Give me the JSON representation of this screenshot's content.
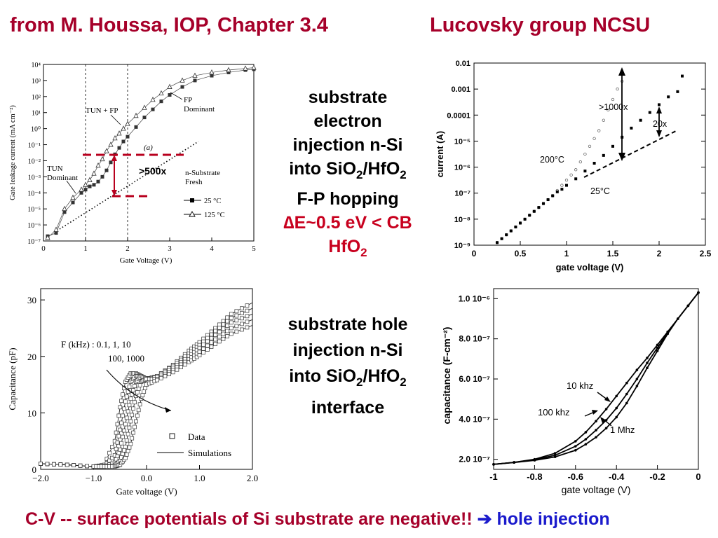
{
  "header": {
    "left": "from M. Houssa, IOP, Chapter 3.4",
    "right": "Lucovsky group NCSU"
  },
  "electron_text": {
    "line1": "substrate",
    "line2": "electron",
    "line3": "injection n-Si",
    "line4a": "into SiO",
    "line4sub1": "2",
    "line4b": "/HfO",
    "line4sub2": "2",
    "line5": "F-P hopping",
    "line6a": "∆",
    "line6b": "E~0.5 eV < CB",
    "line7a": "HfO",
    "line7sub": "2"
  },
  "hole_text": {
    "line1": "substrate hole",
    "line2": "injection n-Si",
    "line3a": "into SiO",
    "line3sub1": "2",
    "line3b": "/HfO",
    "line3sub2": "2",
    "line4": "interface"
  },
  "footer": {
    "text": "C-V -- surface potentials of Si substrate are negative!!",
    "arrow": "➔",
    "emphasis": "hole injection"
  },
  "chart_data": [
    {
      "type": "scatter",
      "title": "",
      "xlabel": "Gate Voltage (V)",
      "ylabel": "Gate leakage current (mA cm⁻²)",
      "xlim": [
        0,
        5
      ],
      "ylim_exp": [
        -7,
        4
      ],
      "y_scale": "log",
      "x_ticks": [
        "0",
        "1",
        "2",
        "3",
        "4",
        "5"
      ],
      "y_ticks": [
        "10⁻⁷",
        "10⁻⁶",
        "10⁻⁵",
        "10⁻⁴",
        "10⁻³",
        "10⁻²",
        "10⁻¹",
        "10⁰",
        "10¹",
        "10²",
        "10³",
        "10⁴"
      ],
      "annotations": [
        "TUN + FP",
        "FP",
        "Dominant",
        "TUN",
        "Dominant",
        "(a)",
        "n-Substrate",
        "Fresh",
        ">500x"
      ],
      "legend": [
        {
          "name": "25 °C",
          "marker": "filled-square"
        },
        {
          "name": "125 °C",
          "marker": "open-triangle"
        }
      ],
      "series": [
        {
          "name": "25 °C",
          "x": [
            0.1,
            0.3,
            0.5,
            0.7,
            0.9,
            1.0,
            1.1,
            1.2,
            1.3,
            1.4,
            1.5,
            1.6,
            1.7,
            1.8,
            1.9,
            2.0,
            2.2,
            2.4,
            2.6,
            2.8,
            3.0,
            3.3,
            3.6,
            4.0,
            4.4,
            4.8,
            5.0
          ],
          "y_exp": [
            -6.7,
            -6.5,
            -5.2,
            -4.6,
            -4.0,
            -3.8,
            -3.6,
            -3.5,
            -3.3,
            -3.0,
            -2.6,
            -2.1,
            -1.6,
            -1.2,
            -0.8,
            -0.5,
            0.1,
            0.7,
            1.2,
            1.7,
            2.1,
            2.6,
            3.0,
            3.3,
            3.5,
            3.65,
            3.7
          ]
        },
        {
          "name": "125 °C",
          "x": [
            0.1,
            0.3,
            0.5,
            0.7,
            0.9,
            1.0,
            1.1,
            1.2,
            1.3,
            1.4,
            1.5,
            1.6,
            1.7,
            1.8,
            1.9,
            2.0,
            2.2,
            2.4,
            2.6,
            2.8,
            3.0,
            3.3,
            3.6,
            4.0,
            4.4,
            4.8,
            5.0
          ],
          "y_exp": [
            -6.8,
            -6.3,
            -5.0,
            -4.3,
            -3.8,
            -3.5,
            -3.2,
            -2.8,
            -2.3,
            -1.9,
            -1.4,
            -1.0,
            -0.6,
            -0.3,
            0.0,
            0.3,
            0.8,
            1.3,
            1.8,
            2.2,
            2.6,
            3.0,
            3.3,
            3.5,
            3.65,
            3.75,
            3.8
          ]
        }
      ]
    },
    {
      "type": "scatter",
      "title": "",
      "xlabel": "gate voltage (V)",
      "ylabel": "current (A)",
      "xlim": [
        0,
        2.5
      ],
      "ylim_exp": [
        -9,
        -2
      ],
      "y_scale": "log",
      "x_ticks": [
        "0",
        "0.5",
        "1",
        "1.5",
        "2",
        "2.5"
      ],
      "y_ticks": [
        "10⁻⁹",
        "10⁻⁸",
        "10⁻⁷",
        "10⁻⁶",
        "10⁻⁵",
        "0.0001",
        "0.001",
        "0.01"
      ],
      "annotations": [
        ">1000x",
        "20x",
        "200°C",
        "25°C"
      ],
      "series": [
        {
          "name": "200°C",
          "x": [
            0.25,
            0.3,
            0.35,
            0.4,
            0.45,
            0.5,
            0.55,
            0.6,
            0.65,
            0.7,
            0.75,
            0.8,
            0.85,
            0.9,
            0.95,
            1.0,
            1.05,
            1.1,
            1.15,
            1.2,
            1.25,
            1.3,
            1.35,
            1.4,
            1.45,
            1.5,
            1.55,
            1.6
          ],
          "y_exp": [
            -8.9,
            -8.75,
            -8.6,
            -8.45,
            -8.3,
            -8.15,
            -8.0,
            -7.85,
            -7.7,
            -7.55,
            -7.4,
            -7.25,
            -7.1,
            -6.9,
            -6.7,
            -6.5,
            -6.3,
            -6.1,
            -5.8,
            -5.5,
            -5.2,
            -4.9,
            -4.6,
            -4.2,
            -3.8,
            -3.4,
            -3.0,
            -2.7
          ]
        },
        {
          "name": "25°C",
          "x": [
            0.25,
            0.3,
            0.35,
            0.4,
            0.45,
            0.5,
            0.55,
            0.6,
            0.65,
            0.7,
            0.75,
            0.8,
            0.85,
            0.9,
            0.95,
            1.0,
            1.1,
            1.2,
            1.3,
            1.4,
            1.5,
            1.6,
            1.7,
            1.8,
            1.9,
            2.0,
            2.1,
            2.2,
            2.25
          ],
          "y_exp": [
            -8.9,
            -8.75,
            -8.6,
            -8.45,
            -8.3,
            -8.15,
            -8.0,
            -7.85,
            -7.7,
            -7.55,
            -7.4,
            -7.25,
            -7.1,
            -6.95,
            -6.85,
            -6.7,
            -6.45,
            -6.15,
            -5.85,
            -5.55,
            -5.2,
            -4.85,
            -4.5,
            -4.2,
            -3.9,
            -3.6,
            -3.3,
            -3.1,
            -2.5
          ]
        }
      ]
    },
    {
      "type": "line",
      "title": "",
      "xlabel": "Gate voltage (V)",
      "ylabel": "Capacitance (pF)",
      "xlim": [
        -2,
        2
      ],
      "ylim": [
        0,
        32
      ],
      "x_ticks": [
        "−2.0",
        "−1.0",
        "0.0",
        "1.0",
        "2.0"
      ],
      "y_ticks": [
        "0",
        "10",
        "20",
        "30"
      ],
      "annotations": [
        "F (kHz) : 0.1, 1, 10",
        "100, 1000"
      ],
      "legend": [
        {
          "name": "Data",
          "marker": "open-square"
        },
        {
          "name": "Simulations",
          "marker": "line"
        }
      ],
      "series": [
        {
          "name": "0.1 kHz",
          "x": [
            -2,
            -1.5,
            -1,
            -0.8,
            -0.6,
            -0.5,
            -0.4,
            -0.3,
            -0.2,
            -0.1,
            0,
            0.2,
            0.5,
            0.8,
            1.0,
            1.3,
            1.6,
            2.0
          ],
          "y": [
            1,
            0.8,
            0.5,
            0.8,
            5,
            11,
            15.5,
            17,
            17,
            16.5,
            16,
            16.5,
            18.5,
            21,
            22.5,
            25,
            27.5,
            29.5
          ]
        },
        {
          "name": "1 kHz",
          "x": [
            -2,
            -1.5,
            -1,
            -0.8,
            -0.6,
            -0.5,
            -0.4,
            -0.3,
            -0.2,
            -0.1,
            0,
            0.2,
            0.5,
            0.8,
            1.0,
            1.3,
            1.6,
            2.0
          ],
          "y": [
            1,
            0.8,
            0.5,
            0.6,
            2.5,
            7,
            12,
            15.5,
            16.5,
            16.5,
            16,
            16.5,
            18.3,
            20.5,
            22,
            24.5,
            26.8,
            28.5
          ]
        },
        {
          "name": "10 kHz",
          "x": [
            -2,
            -1.5,
            -1,
            -0.8,
            -0.6,
            -0.5,
            -0.4,
            -0.3,
            -0.2,
            -0.1,
            0,
            0.2,
            0.5,
            0.8,
            1.0,
            1.3,
            1.6,
            2.0
          ],
          "y": [
            1,
            0.8,
            0.5,
            0.5,
            1.2,
            3.5,
            8,
            12.5,
            15.5,
            16.5,
            16,
            16.3,
            18,
            20,
            21.5,
            23.8,
            26,
            27.5
          ]
        },
        {
          "name": "100 kHz",
          "x": [
            -2,
            -1.5,
            -1,
            -0.8,
            -0.6,
            -0.5,
            -0.4,
            -0.3,
            -0.2,
            -0.1,
            0,
            0.2,
            0.5,
            0.8,
            1.0,
            1.3,
            1.6,
            2.0
          ],
          "y": [
            1,
            0.8,
            0.5,
            0.5,
            0.7,
            1.5,
            4,
            8.5,
            13,
            15.5,
            16,
            16,
            17.6,
            19.5,
            20.8,
            23,
            25,
            26.5
          ]
        },
        {
          "name": "1000 kHz",
          "x": [
            -2,
            -1.5,
            -1,
            -0.8,
            -0.6,
            -0.5,
            -0.4,
            -0.3,
            -0.2,
            -0.1,
            0,
            0.2,
            0.5,
            0.8,
            1.0,
            1.3,
            1.6,
            2.0
          ],
          "y": [
            1,
            0.8,
            0.5,
            0.5,
            0.5,
            0.8,
            2,
            4.5,
            8.5,
            12.5,
            15,
            15.8,
            17.2,
            19,
            20.2,
            22.2,
            24,
            25.5
          ]
        }
      ]
    },
    {
      "type": "line",
      "title": "",
      "xlabel": "gate voltage (V)",
      "ylabel": "capacitance (F-cm⁻²)",
      "xlim": [
        -1,
        0
      ],
      "ylim": [
        1.5e-07,
        1.05e-06
      ],
      "x_ticks": [
        "-1",
        "-0.8",
        "-0.6",
        "-0.4",
        "-0.2",
        "0"
      ],
      "y_ticks": [
        "2.0 10⁻⁷",
        "4.0 10⁻⁷",
        "6.0 10⁻⁷",
        "8.0 10⁻⁷",
        "1.0 10⁻⁶"
      ],
      "annotations": [
        "10 khz",
        "100 khz",
        "1 Mhz"
      ],
      "series": [
        {
          "name": "10 khz",
          "x": [
            -1,
            -0.9,
            -0.8,
            -0.7,
            -0.6,
            -0.55,
            -0.5,
            -0.45,
            -0.4,
            -0.35,
            -0.3,
            -0.25,
            -0.2,
            -0.15,
            -0.1,
            -0.05,
            0
          ],
          "y": [
            1.75e-07,
            1.85e-07,
            2e-07,
            2.3e-07,
            2.9e-07,
            3.35e-07,
            3.9e-07,
            4.5e-07,
            5.15e-07,
            5.8e-07,
            6.45e-07,
            7.05e-07,
            7.7e-07,
            8.35e-07,
            9e-07,
            9.65e-07,
            1.03e-06
          ]
        },
        {
          "name": "100 khz",
          "x": [
            -1,
            -0.9,
            -0.8,
            -0.7,
            -0.6,
            -0.55,
            -0.5,
            -0.45,
            -0.4,
            -0.35,
            -0.3,
            -0.25,
            -0.2,
            -0.15,
            -0.1,
            -0.05,
            0
          ],
          "y": [
            1.75e-07,
            1.85e-07,
            1.98e-07,
            2.2e-07,
            2.65e-07,
            3e-07,
            3.45e-07,
            3.95e-07,
            4.55e-07,
            5.25e-07,
            6e-07,
            6.8e-07,
            7.55e-07,
            8.3e-07,
            9e-07,
            9.65e-07,
            1.03e-06
          ]
        },
        {
          "name": "1 Mhz",
          "x": [
            -1,
            -0.9,
            -0.8,
            -0.7,
            -0.6,
            -0.55,
            -0.5,
            -0.45,
            -0.4,
            -0.35,
            -0.3,
            -0.25,
            -0.2,
            -0.15,
            -0.1,
            -0.05,
            0
          ],
          "y": [
            1.75e-07,
            1.84e-07,
            1.95e-07,
            2.12e-07,
            2.45e-07,
            2.75e-07,
            3.1e-07,
            3.55e-07,
            4.1e-07,
            4.8e-07,
            5.65e-07,
            6.55e-07,
            7.4e-07,
            8.25e-07,
            9e-07,
            9.65e-07,
            1.03e-06
          ]
        }
      ]
    }
  ]
}
